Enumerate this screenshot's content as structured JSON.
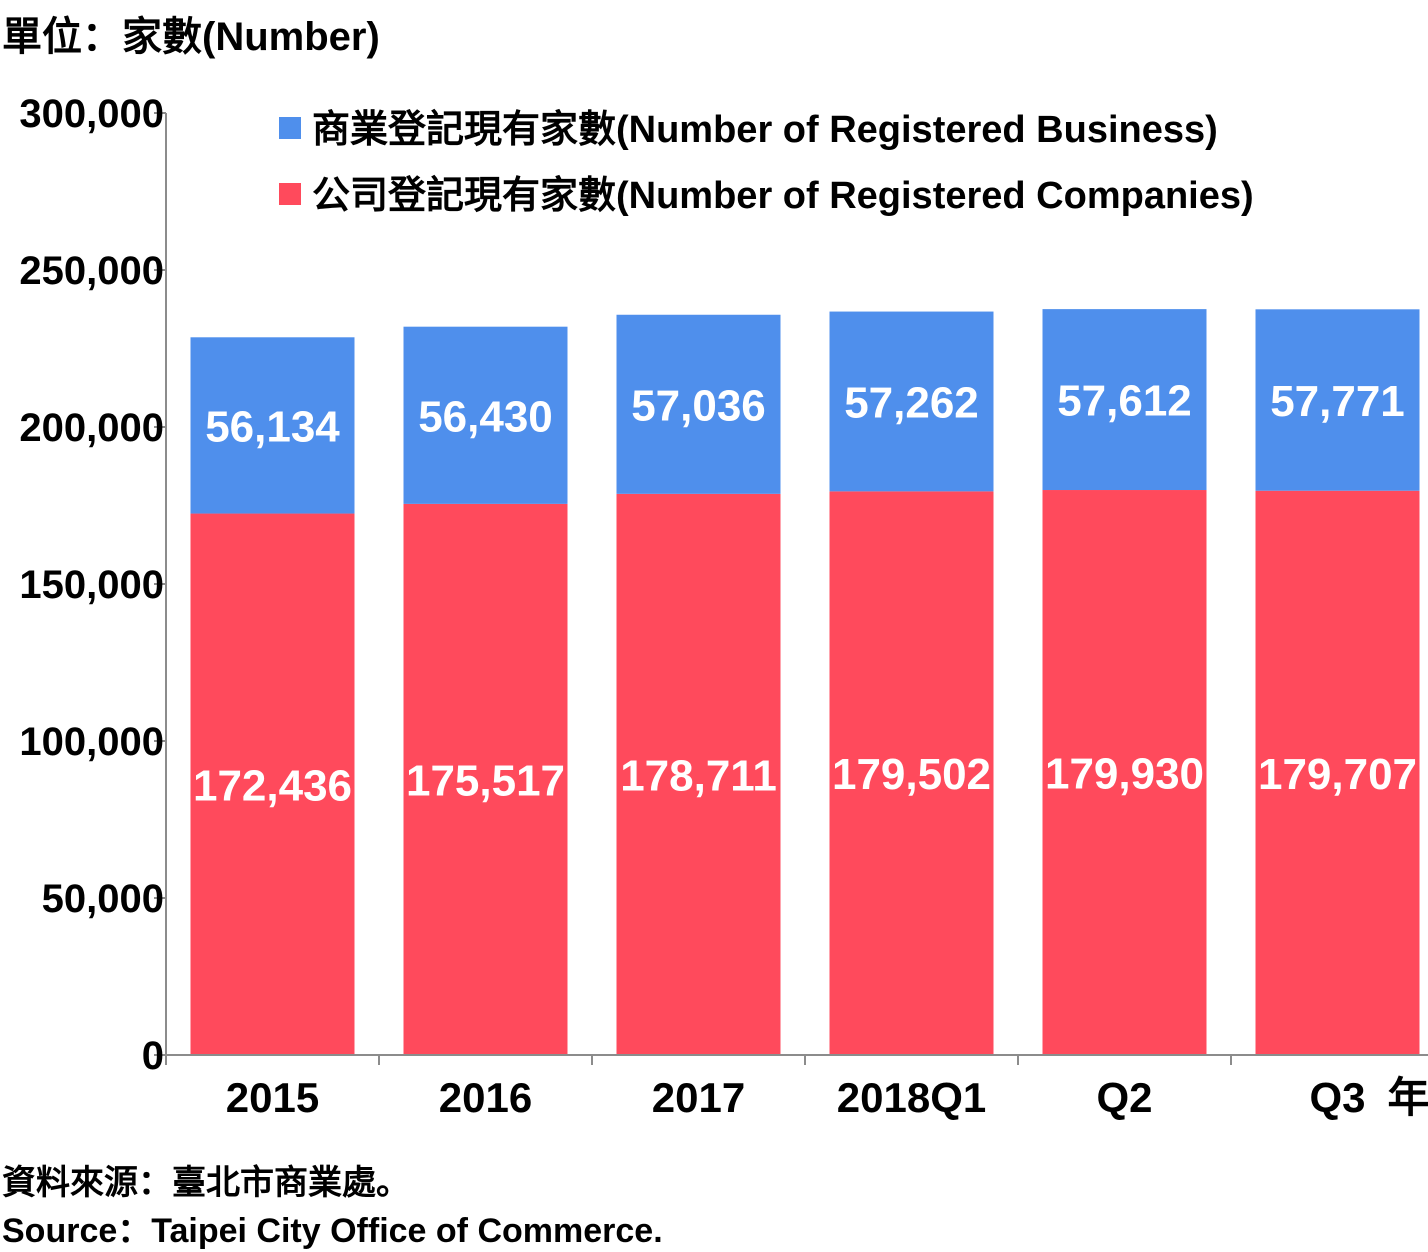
{
  "unit_label": "單位：家數(Number)",
  "year_suffix": "年",
  "source_zh": "資料來源：臺北市商業處。",
  "source_en": "Source：Taipei City Office of Commerce.",
  "colors": {
    "business": "#4f8fec",
    "companies": "#ff4a5c",
    "axis": "#8c8c8c"
  },
  "chart_data": {
    "type": "bar",
    "stacked": true,
    "categories": [
      "2015",
      "2016",
      "2017",
      "2018Q1",
      "Q2",
      "Q3"
    ],
    "series": [
      {
        "name": "公司登記現有家數(Number of Registered Companies)",
        "values": [
          172436,
          175517,
          178711,
          179502,
          179930,
          179707
        ]
      },
      {
        "name": "商業登記現有家數(Number of Registered Business)",
        "values": [
          56134,
          56430,
          57036,
          57262,
          57612,
          57771
        ]
      }
    ],
    "yticks": [
      "0",
      "50,000",
      "100,000",
      "150,000",
      "200,000",
      "250,000",
      "300,000"
    ],
    "ylim": [
      0,
      300000
    ],
    "legend": "top",
    "grid": false
  }
}
